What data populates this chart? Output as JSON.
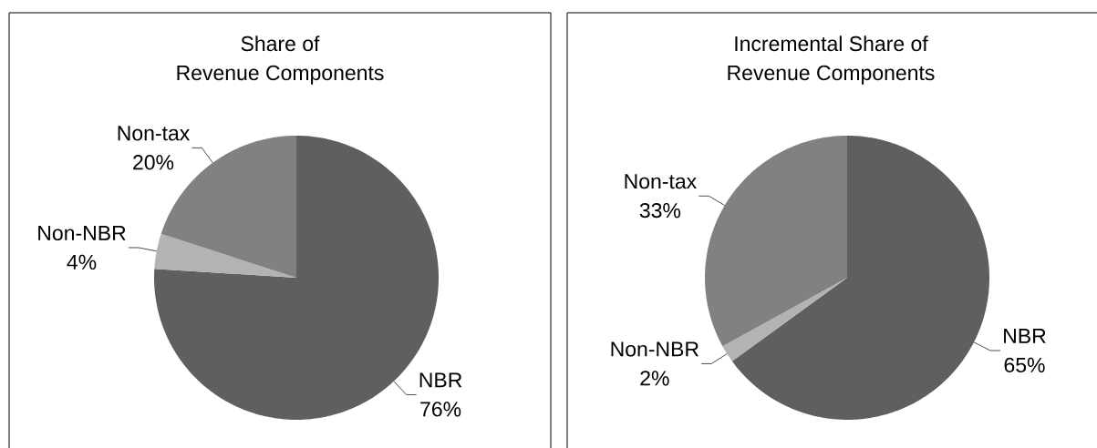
{
  "chart_data": [
    {
      "type": "pie",
      "title": "Share of\nRevenue Components",
      "categories": [
        "NBR",
        "Non-NBR",
        "Non-tax"
      ],
      "values": [
        76,
        4,
        20
      ],
      "value_labels": [
        "76%",
        "4%",
        "20%"
      ],
      "colors": [
        "#5f5f5f",
        "#b3b3b3",
        "#818181"
      ]
    },
    {
      "type": "pie",
      "title": "Incremental Share of\nRevenue Components",
      "categories": [
        "NBR",
        "Non-NBR",
        "Non-tax"
      ],
      "values": [
        65,
        2,
        33
      ],
      "value_labels": [
        "65%",
        "2%",
        "33%"
      ],
      "colors": [
        "#5f5f5f",
        "#b3b3b3",
        "#818181"
      ]
    }
  ]
}
